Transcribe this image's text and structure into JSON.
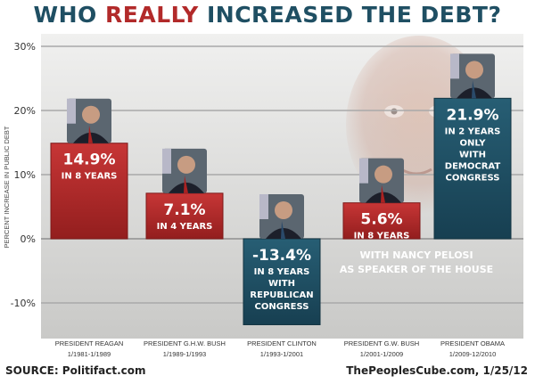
{
  "title": {
    "part1": "WHO ",
    "accent": "REALLY",
    "part2": " INCREASED THE DEBT?"
  },
  "footer": {
    "source": "SOURCE: Politifact.com",
    "credit": "ThePeoplesCube.com, 1/25/12"
  },
  "overlay_text": [
    "WITH NANCY PELOSI",
    "AS SPEAKER OF THE HOUSE"
  ],
  "colors": {
    "republican": "#b22a2a",
    "democrat": "#1f4f63",
    "title_accent": "#b22a2a",
    "title_main": "#1f4f63"
  },
  "chart_data": {
    "type": "bar",
    "ylabel": "PERCENT INCREASE IN PUBLIC DEBT",
    "ylim": [
      -15,
      32
    ],
    "yticks": [
      30,
      20,
      10,
      0,
      -10
    ],
    "ytick_labels": [
      "30%",
      "20%",
      "10%",
      "0%",
      "-10%"
    ],
    "grid": true,
    "categories": [
      {
        "name": "PRESIDENT REAGAN",
        "dates": "1/1981-1/1989"
      },
      {
        "name": "PRESIDENT G.H.W. BUSH",
        "dates": "1/1989-1/1993"
      },
      {
        "name": "PRESIDENT CLINTON",
        "dates": "1/1993-1/2001"
      },
      {
        "name": "PRESIDENT G.W. BUSH",
        "dates": "1/2001-1/2009"
      },
      {
        "name": "PRESIDENT OBAMA",
        "dates": "1/2009-12/2010"
      }
    ],
    "values": [
      14.9,
      7.1,
      -13.4,
      5.6,
      21.9
    ],
    "party": [
      "republican",
      "republican",
      "democrat",
      "republican",
      "democrat"
    ],
    "data_labels": [
      {
        "value": "14.9%",
        "lines": [
          "IN 8 YEARS"
        ]
      },
      {
        "value": "7.1%",
        "lines": [
          "IN 4 YEARS"
        ]
      },
      {
        "value": "-13.4%",
        "lines": [
          "IN 8 YEARS",
          "WITH",
          "REPUBLICAN",
          "CONGRESS"
        ]
      },
      {
        "value": "5.6%",
        "lines": [
          "IN 8 YEARS"
        ]
      },
      {
        "value": "21.9%",
        "lines": [
          "IN 2 YEARS",
          "ONLY",
          "WITH",
          "DEMOCRAT",
          "CONGRESS"
        ]
      }
    ]
  }
}
